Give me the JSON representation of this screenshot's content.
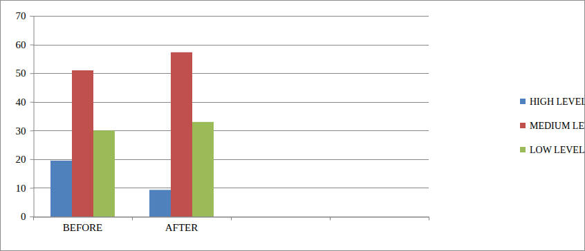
{
  "chart_data": {
    "type": "bar",
    "categories": [
      "BEFORE",
      "AFTER",
      null,
      null
    ],
    "series": [
      {
        "name": "HIGH LEVEL",
        "color": "#4f81bd",
        "values": [
          19.5,
          9.3,
          null,
          null
        ]
      },
      {
        "name": "MEDIUM LEVEL",
        "color": "#c0504d",
        "values": [
          51,
          57.3,
          null,
          null
        ]
      },
      {
        "name": "LOW LEVEL",
        "color": "#9bbb59",
        "values": [
          30,
          33,
          null,
          null
        ]
      }
    ],
    "ylim": [
      0,
      70
    ],
    "yticks": [
      0,
      10,
      20,
      30,
      40,
      50,
      60,
      70
    ],
    "grid": true,
    "legend": "right"
  }
}
